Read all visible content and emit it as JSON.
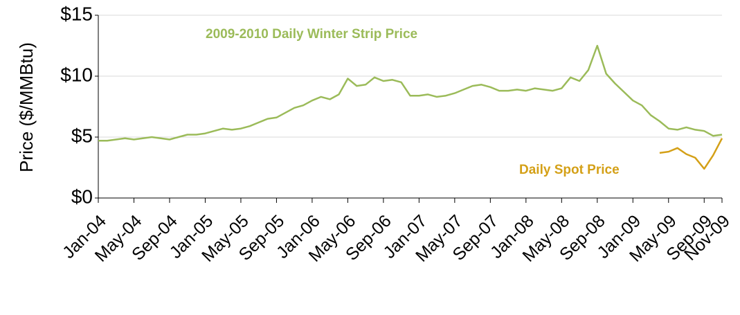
{
  "chart_data": {
    "type": "line",
    "y_label": "Price ($/MMBtu)",
    "categories": [
      "Jan-04",
      null,
      null,
      null,
      "May-04",
      null,
      null,
      null,
      "Sep-04",
      null,
      null,
      null,
      "Jan-05",
      null,
      null,
      null,
      "May-05",
      null,
      null,
      null,
      "Sep-05",
      null,
      null,
      null,
      "Jan-06",
      null,
      null,
      null,
      "May-06",
      null,
      null,
      null,
      "Sep-06",
      null,
      null,
      null,
      "Jan-07",
      null,
      null,
      null,
      "May-07",
      null,
      null,
      null,
      "Sep-07",
      null,
      null,
      null,
      "Jan-08",
      null,
      null,
      null,
      "May-08",
      null,
      null,
      null,
      "Sep-08",
      null,
      null,
      null,
      "Jan-09",
      null,
      null,
      null,
      "May-09",
      null,
      null,
      null,
      "Sep-09",
      null,
      "Nov-09"
    ],
    "series": [
      {
        "name": "2009-2010 Daily Winter Strip Price",
        "color": "#9bbb59",
        "values": [
          4.7,
          4.7,
          4.8,
          4.9,
          4.8,
          4.9,
          5.0,
          4.9,
          4.8,
          5.0,
          5.2,
          5.2,
          5.3,
          5.5,
          5.7,
          5.6,
          5.7,
          5.9,
          6.2,
          6.5,
          6.6,
          7.0,
          7.4,
          7.6,
          8.0,
          8.3,
          8.1,
          8.5,
          9.8,
          9.2,
          9.3,
          9.9,
          9.6,
          9.7,
          9.5,
          8.4,
          8.4,
          8.5,
          8.3,
          8.4,
          8.6,
          8.9,
          9.2,
          9.3,
          9.1,
          8.8,
          8.8,
          8.9,
          8.8,
          9.0,
          8.9,
          8.8,
          9.0,
          9.9,
          9.6,
          10.5,
          12.5,
          10.2,
          9.4,
          8.7,
          8.0,
          7.6,
          6.8,
          6.3,
          5.7,
          5.6,
          5.8,
          5.6,
          5.5,
          5.1,
          5.2
        ]
      },
      {
        "name": "Daily Spot Price",
        "color": "#d4a017",
        "values": [
          null,
          null,
          null,
          null,
          null,
          null,
          null,
          null,
          null,
          null,
          null,
          null,
          null,
          null,
          null,
          null,
          null,
          null,
          null,
          null,
          null,
          null,
          null,
          null,
          null,
          null,
          null,
          null,
          null,
          null,
          null,
          null,
          null,
          null,
          null,
          null,
          null,
          null,
          null,
          null,
          null,
          null,
          null,
          null,
          null,
          null,
          null,
          null,
          null,
          null,
          null,
          null,
          null,
          null,
          null,
          null,
          null,
          null,
          null,
          null,
          null,
          null,
          null,
          3.7,
          3.8,
          4.1,
          3.6,
          3.3,
          2.4,
          3.5,
          4.9
        ]
      }
    ],
    "ylim": [
      0,
      15
    ],
    "yticks": [
      {
        "value": 0,
        "label": "$0"
      },
      {
        "value": 5,
        "label": "$5"
      },
      {
        "value": 10,
        "label": "$10"
      },
      {
        "value": 15,
        "label": "$15"
      }
    ],
    "grid": true
  }
}
